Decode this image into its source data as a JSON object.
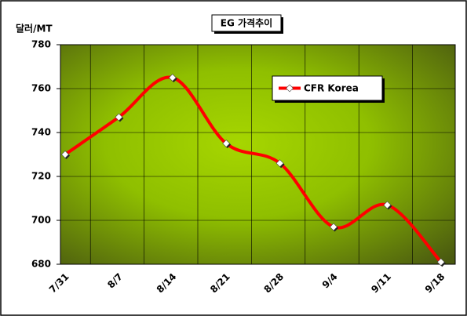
{
  "chart_data": {
    "type": "line",
    "title": "EG 가격추이",
    "y_label": "달러/MT",
    "categories": [
      "7/31",
      "8/7",
      "8/14",
      "8/21",
      "8/28",
      "9/4",
      "9/11",
      "9/18"
    ],
    "series": [
      {
        "name": "CFR Korea",
        "color": "#ff0000",
        "values": [
          730,
          747,
          765,
          735,
          726,
          697,
          707,
          681
        ]
      }
    ],
    "ylim": [
      680,
      780
    ],
    "yticks": [
      680,
      700,
      720,
      740,
      760,
      780
    ],
    "grid": true,
    "legend": "upper right"
  }
}
